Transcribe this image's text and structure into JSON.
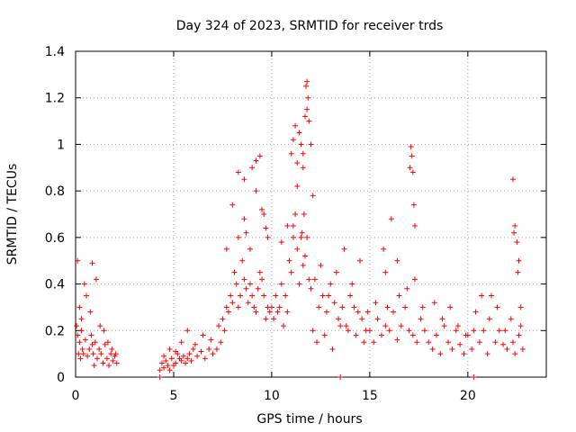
{
  "chart_data": {
    "type": "scatter",
    "title": "Day 324 of 2023, SRMTID for receiver trds",
    "xlabel": "GPS time / hours",
    "ylabel": "SRMTID / TECUs",
    "xlim": [
      0,
      24
    ],
    "ylim": [
      0,
      1.4
    ],
    "xticks": [
      0,
      5,
      10,
      15,
      20
    ],
    "yticks": [
      0,
      0.2,
      0.4,
      0.6,
      0.8,
      1,
      1.2,
      1.4
    ],
    "xtick_labels": [
      "0",
      "5",
      "10",
      "15",
      "20"
    ],
    "ytick_labels": [
      "0",
      "0.2",
      "0.4",
      "0.6",
      "0.8",
      "1",
      "1.2",
      "1.4"
    ],
    "grid": true,
    "marker": "+",
    "color": "#ff0000",
    "series": [
      {
        "name": "SRMTID",
        "x": [
          0.05,
          0.1,
          0.15,
          0.2,
          0.25,
          0.3,
          0.35,
          0.4,
          0.5,
          0.6,
          0.7,
          0.8,
          0.85,
          0.9,
          0.95,
          1.0,
          1.1,
          1.2,
          1.3,
          1.4,
          1.5,
          1.6,
          1.7,
          1.8,
          1.9,
          2.0,
          2.1,
          0.1,
          0.2,
          0.3,
          0.45,
          0.55,
          0.75,
          0.85,
          1.05,
          1.25,
          1.45,
          1.65,
          1.85,
          2.05,
          4.3,
          4.4,
          4.5,
          4.6,
          4.7,
          4.8,
          4.9,
          5.0,
          5.1,
          5.2,
          5.3,
          5.4,
          5.5,
          5.6,
          5.7,
          5.8,
          5.9,
          6.0,
          6.2,
          6.4,
          6.6,
          6.8,
          7.0,
          7.2,
          7.4,
          4.5,
          4.8,
          5.1,
          5.4,
          5.7,
          6.1,
          6.5,
          6.9,
          7.3,
          7.5,
          7.6,
          7.7,
          7.8,
          7.9,
          8.0,
          8.1,
          8.2,
          8.3,
          8.4,
          8.5,
          8.6,
          8.7,
          8.8,
          8.9,
          9.0,
          9.1,
          9.2,
          9.3,
          9.4,
          9.5,
          9.6,
          9.7,
          9.8,
          9.9,
          7.7,
          8.0,
          8.3,
          8.6,
          8.9,
          9.2,
          9.5,
          9.8,
          8.3,
          8.6,
          8.7,
          9.0,
          9.2,
          9.4,
          9.6,
          9.7,
          10.0,
          10.1,
          10.2,
          10.3,
          10.4,
          10.5,
          10.6,
          10.7,
          10.8,
          10.9,
          11.0,
          11.1,
          11.2,
          11.3,
          11.4,
          11.5,
          11.6,
          11.7,
          11.8,
          11.9,
          10.5,
          10.8,
          11.0,
          11.1,
          11.2,
          11.3,
          11.4,
          11.5,
          11.55,
          11.6,
          11.65,
          11.7,
          11.75,
          11.8,
          11.85,
          11.9,
          12.0,
          12.1,
          11.1,
          11.3,
          11.6,
          11.8,
          12.0,
          12.2,
          12.4,
          12.6,
          12.8,
          13.0,
          13.2,
          13.4,
          13.6,
          13.8,
          14.0,
          14.2,
          14.4,
          14.6,
          14.8,
          12.1,
          12.5,
          12.9,
          13.3,
          13.7,
          14.1,
          14.5,
          14.9,
          12.3,
          12.7,
          13.1,
          13.5,
          13.9,
          14.3,
          14.7,
          15.0,
          15.2,
          15.4,
          15.6,
          15.8,
          16.0,
          16.2,
          16.4,
          16.6,
          16.8,
          17.0,
          17.2,
          17.4,
          17.6,
          17.8,
          15.3,
          15.8,
          16.1,
          16.4,
          16.9,
          17.3,
          17.7,
          17.1,
          17.15,
          17.2,
          17.25,
          17.05,
          17.3,
          15.7,
          15.9,
          16.5,
          18.0,
          18.2,
          18.4,
          18.6,
          18.8,
          19.0,
          19.2,
          19.4,
          19.6,
          19.8,
          20.0,
          20.2,
          20.4,
          20.6,
          20.8,
          21.0,
          21.2,
          21.4,
          21.6,
          21.8,
          22.0,
          22.2,
          22.4,
          22.6,
          22.8,
          18.3,
          18.7,
          19.1,
          19.5,
          19.9,
          20.3,
          20.7,
          21.1,
          21.5,
          21.9,
          22.3,
          22.7,
          22.3,
          22.4,
          22.5,
          22.6,
          22.35,
          22.55,
          22.7,
          4.3,
          13.5,
          20.3
        ],
        "y": [
          0.22,
          0.18,
          0.1,
          0.15,
          0.08,
          0.2,
          0.12,
          0.1,
          0.16,
          0.09,
          0.12,
          0.18,
          0.14,
          0.1,
          0.05,
          0.15,
          0.08,
          0.12,
          0.1,
          0.06,
          0.14,
          0.08,
          0.05,
          0.1,
          0.07,
          0.09,
          0.06,
          0.5,
          0.3,
          0.25,
          0.4,
          0.35,
          0.28,
          0.49,
          0.42,
          0.22,
          0.2,
          0.15,
          0.12,
          0.1,
          0.03,
          0.06,
          0.04,
          0.07,
          0.05,
          0.03,
          0.08,
          0.05,
          0.06,
          0.1,
          0.08,
          0.07,
          0.09,
          0.06,
          0.08,
          0.1,
          0.07,
          0.12,
          0.09,
          0.11,
          0.08,
          0.12,
          0.1,
          0.12,
          0.15,
          0.09,
          0.12,
          0.11,
          0.15,
          0.2,
          0.14,
          0.18,
          0.16,
          0.22,
          0.25,
          0.2,
          0.3,
          0.28,
          0.35,
          0.32,
          0.45,
          0.4,
          0.3,
          0.35,
          0.5,
          0.42,
          0.38,
          0.32,
          0.4,
          0.35,
          0.3,
          0.28,
          0.38,
          0.45,
          0.42,
          0.35,
          0.25,
          0.3,
          0.28,
          0.55,
          0.74,
          0.6,
          0.68,
          0.55,
          0.8,
          0.72,
          0.6,
          0.88,
          0.85,
          0.62,
          0.9,
          0.93,
          0.95,
          0.7,
          0.64,
          0.3,
          0.25,
          0.35,
          0.28,
          0.3,
          0.4,
          0.22,
          0.35,
          0.28,
          0.5,
          0.45,
          0.6,
          0.7,
          0.55,
          0.4,
          0.6,
          0.48,
          0.52,
          0.6,
          0.42,
          0.58,
          0.65,
          0.96,
          1.02,
          1.08,
          0.92,
          1.05,
          1.0,
          0.62,
          0.9,
          0.7,
          1.12,
          1.25,
          1.27,
          1.2,
          1.1,
          1.0,
          0.78,
          0.65,
          0.82,
          0.96,
          1.15,
          0.38,
          0.42,
          0.3,
          0.35,
          0.28,
          0.4,
          0.32,
          0.25,
          0.3,
          0.22,
          0.35,
          0.3,
          0.28,
          0.25,
          0.2,
          0.2,
          0.48,
          0.35,
          0.45,
          0.55,
          0.4,
          0.5,
          0.28,
          0.15,
          0.18,
          0.12,
          0.22,
          0.2,
          0.18,
          0.15,
          0.2,
          0.15,
          0.25,
          0.18,
          0.22,
          0.2,
          0.28,
          0.16,
          0.22,
          0.3,
          0.2,
          0.18,
          0.15,
          0.25,
          0.2,
          0.32,
          0.45,
          0.68,
          0.5,
          0.38,
          0.42,
          0.3,
          0.99,
          0.95,
          0.88,
          0.74,
          0.9,
          0.65,
          0.55,
          0.3,
          0.35,
          0.15,
          0.12,
          0.18,
          0.1,
          0.22,
          0.15,
          0.12,
          0.2,
          0.14,
          0.1,
          0.18,
          0.12,
          0.28,
          0.15,
          0.2,
          0.1,
          0.35,
          0.15,
          0.2,
          0.14,
          0.12,
          0.25,
          0.1,
          0.18,
          0.12,
          0.32,
          0.25,
          0.3,
          0.22,
          0.18,
          0.2,
          0.35,
          0.25,
          0.3,
          0.2,
          0.15,
          0.22,
          0.85,
          0.65,
          0.58,
          0.5,
          0.62,
          0.45,
          0.3,
          0.0,
          0.0,
          0.0
        ]
      }
    ]
  }
}
